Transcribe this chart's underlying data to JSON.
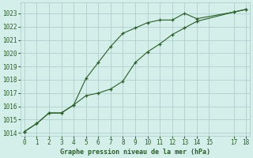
{
  "title": "Graphe pression niveau de la mer (hPa)",
  "background_color": "#d4eeea",
  "grid_color": "#b0ceca",
  "line_color": "#2a5e2a",
  "xlim": [
    -0.3,
    18.3
  ],
  "ylim": [
    1013.8,
    1023.8
  ],
  "xticks": [
    0,
    1,
    2,
    3,
    4,
    5,
    6,
    7,
    8,
    9,
    10,
    11,
    12,
    13,
    14,
    15,
    17,
    18
  ],
  "yticks": [
    1014,
    1015,
    1016,
    1017,
    1018,
    1019,
    1020,
    1021,
    1022,
    1023
  ],
  "line1_x": [
    0,
    1,
    2,
    3,
    4,
    5,
    6,
    7,
    8,
    9,
    10,
    11,
    12,
    13,
    14,
    17,
    18
  ],
  "line1_y": [
    1014.1,
    1014.7,
    1015.5,
    1015.5,
    1016.1,
    1018.1,
    1019.3,
    1020.5,
    1021.5,
    1021.9,
    1022.3,
    1022.5,
    1022.5,
    1023.0,
    1022.6,
    1023.1,
    1023.3
  ],
  "line2_x": [
    0,
    1,
    2,
    3,
    4,
    5,
    6,
    7,
    8,
    9,
    10,
    11,
    12,
    13,
    14,
    17,
    18
  ],
  "line2_y": [
    1014.1,
    1014.7,
    1015.5,
    1015.5,
    1016.1,
    1016.8,
    1017.0,
    1017.3,
    1017.9,
    1019.3,
    1020.1,
    1020.7,
    1021.4,
    1021.9,
    1022.4,
    1023.1,
    1023.3
  ],
  "tick_fontsize": 5.5,
  "xlabel_fontsize": 6.0
}
